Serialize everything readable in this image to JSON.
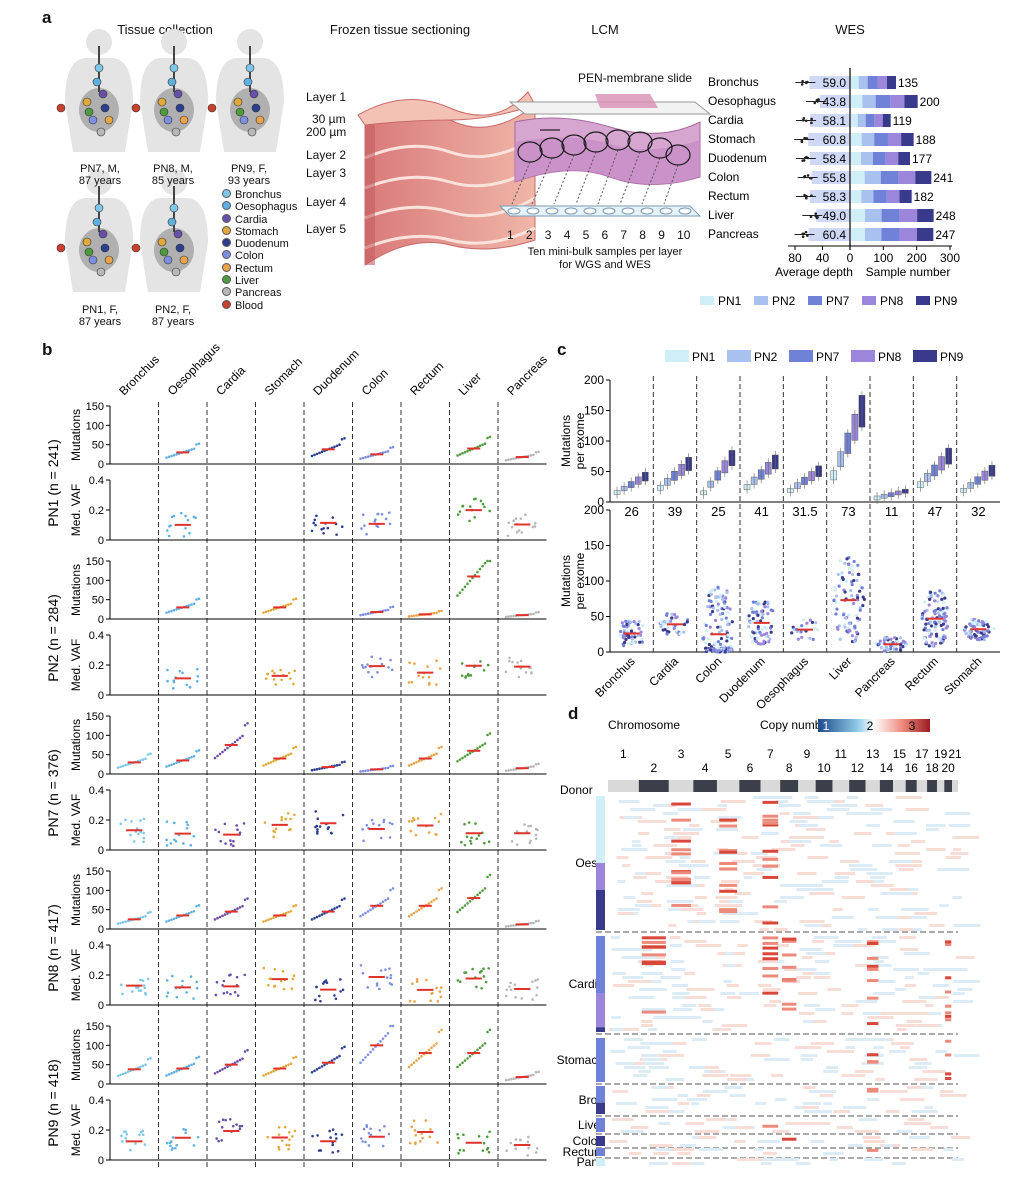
{
  "panel_a": {
    "letter": "a",
    "headers": {
      "tissue_collection": "Tissue collection",
      "frozen_sectioning": "Frozen tissue sectioning",
      "lcm": "LCM",
      "wes": "WES"
    },
    "donors": [
      {
        "line1": "PN7, M,",
        "line2": "87 years"
      },
      {
        "line1": "PN8, M,",
        "line2": "85 years"
      },
      {
        "line1": "PN9, F,",
        "line2": "93 years"
      },
      {
        "line1": "PN1, F,",
        "line2": "87 years"
      },
      {
        "line1": "PN2, F,",
        "line2": "87 years"
      }
    ],
    "tissue_legend": [
      {
        "label": "Bronchus",
        "color": "#7fc7e6"
      },
      {
        "label": "Oesophagus",
        "color": "#5fb0e0"
      },
      {
        "label": "Cardia",
        "color": "#6a4fa8"
      },
      {
        "label": "Stomach",
        "color": "#e0a93a"
      },
      {
        "label": "Duodenum",
        "color": "#2c3f8f"
      },
      {
        "label": "Colon",
        "color": "#7e8fe0"
      },
      {
        "label": "Rectum",
        "color": "#e8a44a"
      },
      {
        "label": "Liver",
        "color": "#4f9a3e"
      },
      {
        "label": "Pancreas",
        "color": "#b8b8b8"
      },
      {
        "label": "Blood",
        "color": "#c8412e"
      }
    ],
    "section_labels": {
      "layer1": "Layer 1",
      "thick30": "30 µm",
      "thick200": "200 µm",
      "layer2": "Layer 2",
      "layer3": "Layer 3",
      "layer4": "Layer 4",
      "layer5": "Layer 5"
    },
    "lcm_labels": {
      "slide": "PEN-membrane slide",
      "wells": [
        "1",
        "2",
        "3",
        "4",
        "5",
        "6",
        "7",
        "8",
        "9",
        "10"
      ],
      "caption1": "Ten mini-bulk samples per layer",
      "caption2": "for WGS and WES"
    },
    "wes_chart": {
      "tissues": [
        "Bronchus",
        "Oesophagus",
        "Cardia",
        "Stomach",
        "Duodenum",
        "Colon",
        "Rectum",
        "Liver",
        "Pancreas"
      ],
      "depth": [
        59.0,
        43.8,
        58.1,
        60.8,
        58.4,
        55.8,
        58.3,
        49.0,
        60.4
      ],
      "depth_labels": [
        "59.0",
        "43.8",
        "58.1",
        "60.8",
        "58.4",
        "55.8",
        "58.3",
        "49.0",
        "60.4"
      ],
      "sample_numbers": [
        135,
        200,
        119,
        188,
        177,
        241,
        182,
        248,
        247
      ],
      "sample_labels": [
        "135",
        "200",
        "119",
        "188",
        "177",
        "241",
        "182",
        "248",
        "247"
      ],
      "depth_ticks": [
        "80",
        "40",
        "0"
      ],
      "sample_ticks": [
        "100",
        "200",
        "300"
      ],
      "xlabel_left": "Average depth",
      "xlabel_right": "Sample number",
      "donor_legend": [
        {
          "label": "PN1",
          "color": "#cfeef7"
        },
        {
          "label": "PN2",
          "color": "#a9c1ef"
        },
        {
          "label": "PN7",
          "color": "#6f82d8"
        },
        {
          "label": "PN8",
          "color": "#9b86dc"
        },
        {
          "label": "PN9",
          "color": "#3a3a8c"
        }
      ]
    }
  },
  "panel_b": {
    "letter": "b",
    "tissues": [
      "Bronchus",
      "Oesophagus",
      "Cardia",
      "Stomach",
      "Duodenum",
      "Colon",
      "Rectum",
      "Liver",
      "Pancreas"
    ],
    "donor_rows": [
      {
        "label": "PN1 (n = 241)"
      },
      {
        "label": "PN2 (n = 284)"
      },
      {
        "label": "PN7 (n = 376)"
      },
      {
        "label": "PN8 (n = 417)"
      },
      {
        "label": "PN9 (n = 418)"
      }
    ],
    "mut_label": "Mutations",
    "vaf_label": "Med. VAF",
    "mut_ticks": [
      "0",
      "50",
      "100",
      "150"
    ],
    "vaf_ticks": [
      "0",
      "0.2",
      "0.4"
    ]
  },
  "panel_c": {
    "letter": "c",
    "donor_legend": [
      "PN1",
      "PN2",
      "PN7",
      "PN8",
      "PN9"
    ],
    "ylabel_line1": "Mutations",
    "ylabel_line2": "per exome",
    "y_ticks": [
      "0",
      "50",
      "100",
      "150",
      "200"
    ],
    "medians": [
      "26",
      "39",
      "25",
      "41",
      "31.5",
      "73",
      "11",
      "47",
      "32"
    ],
    "tissues": [
      "Bronchus",
      "Cardia",
      "Colon",
      "Duodenum",
      "Oesophagus",
      "Liver",
      "Pancreas",
      "Rectum",
      "Stomach"
    ]
  },
  "panel_d": {
    "letter": "d",
    "chromosome_label": "Chromosome",
    "copy_number_label": "Copy number",
    "cn_ticks": [
      "1",
      "2",
      "3"
    ],
    "donor_label": "Donor",
    "chrom_numbers_top": [
      "1",
      "3",
      "5",
      "7",
      "9",
      "11",
      "13",
      "15",
      "17",
      "19",
      "21"
    ],
    "chrom_numbers_bottom": [
      "2",
      "4",
      "6",
      "8",
      "10",
      "12",
      "14",
      "16",
      "18",
      "20"
    ],
    "tissue_groups": [
      "Oeso",
      "Cardia",
      "Stomach",
      "Bron",
      "Liver",
      "Colon",
      "Rectum",
      "Panc"
    ]
  },
  "chart_data": [
    {
      "type": "bar",
      "title": "WES",
      "categories": [
        "Bronchus",
        "Oesophagus",
        "Cardia",
        "Stomach",
        "Duodenum",
        "Colon",
        "Rectum",
        "Liver",
        "Pancreas"
      ],
      "series": [
        {
          "name": "Average depth",
          "values": [
            59.0,
            43.8,
            58.1,
            60.8,
            58.4,
            55.8,
            58.3,
            49.0,
            60.4
          ]
        },
        {
          "name": "Sample number",
          "values": [
            135,
            200,
            119,
            188,
            177,
            241,
            182,
            248,
            247
          ]
        }
      ],
      "xlabel": "Average depth / Sample number",
      "xlim_depth": [
        80,
        0
      ],
      "xlim_samples": [
        0,
        300
      ]
    },
    {
      "type": "scatter",
      "title": "",
      "categories": [
        "Bronchus",
        "Cardia",
        "Colon",
        "Duodenum",
        "Oesophagus",
        "Liver",
        "Pancreas",
        "Rectum",
        "Stomach"
      ],
      "series": [
        {
          "name": "",
          "values": [
            26,
            39,
            25,
            41,
            31.5,
            73,
            11,
            47,
            32
          ]
        }
      ],
      "ylabel": "Mutations per exome",
      "ylim": [
        0,
        200
      ]
    }
  ]
}
